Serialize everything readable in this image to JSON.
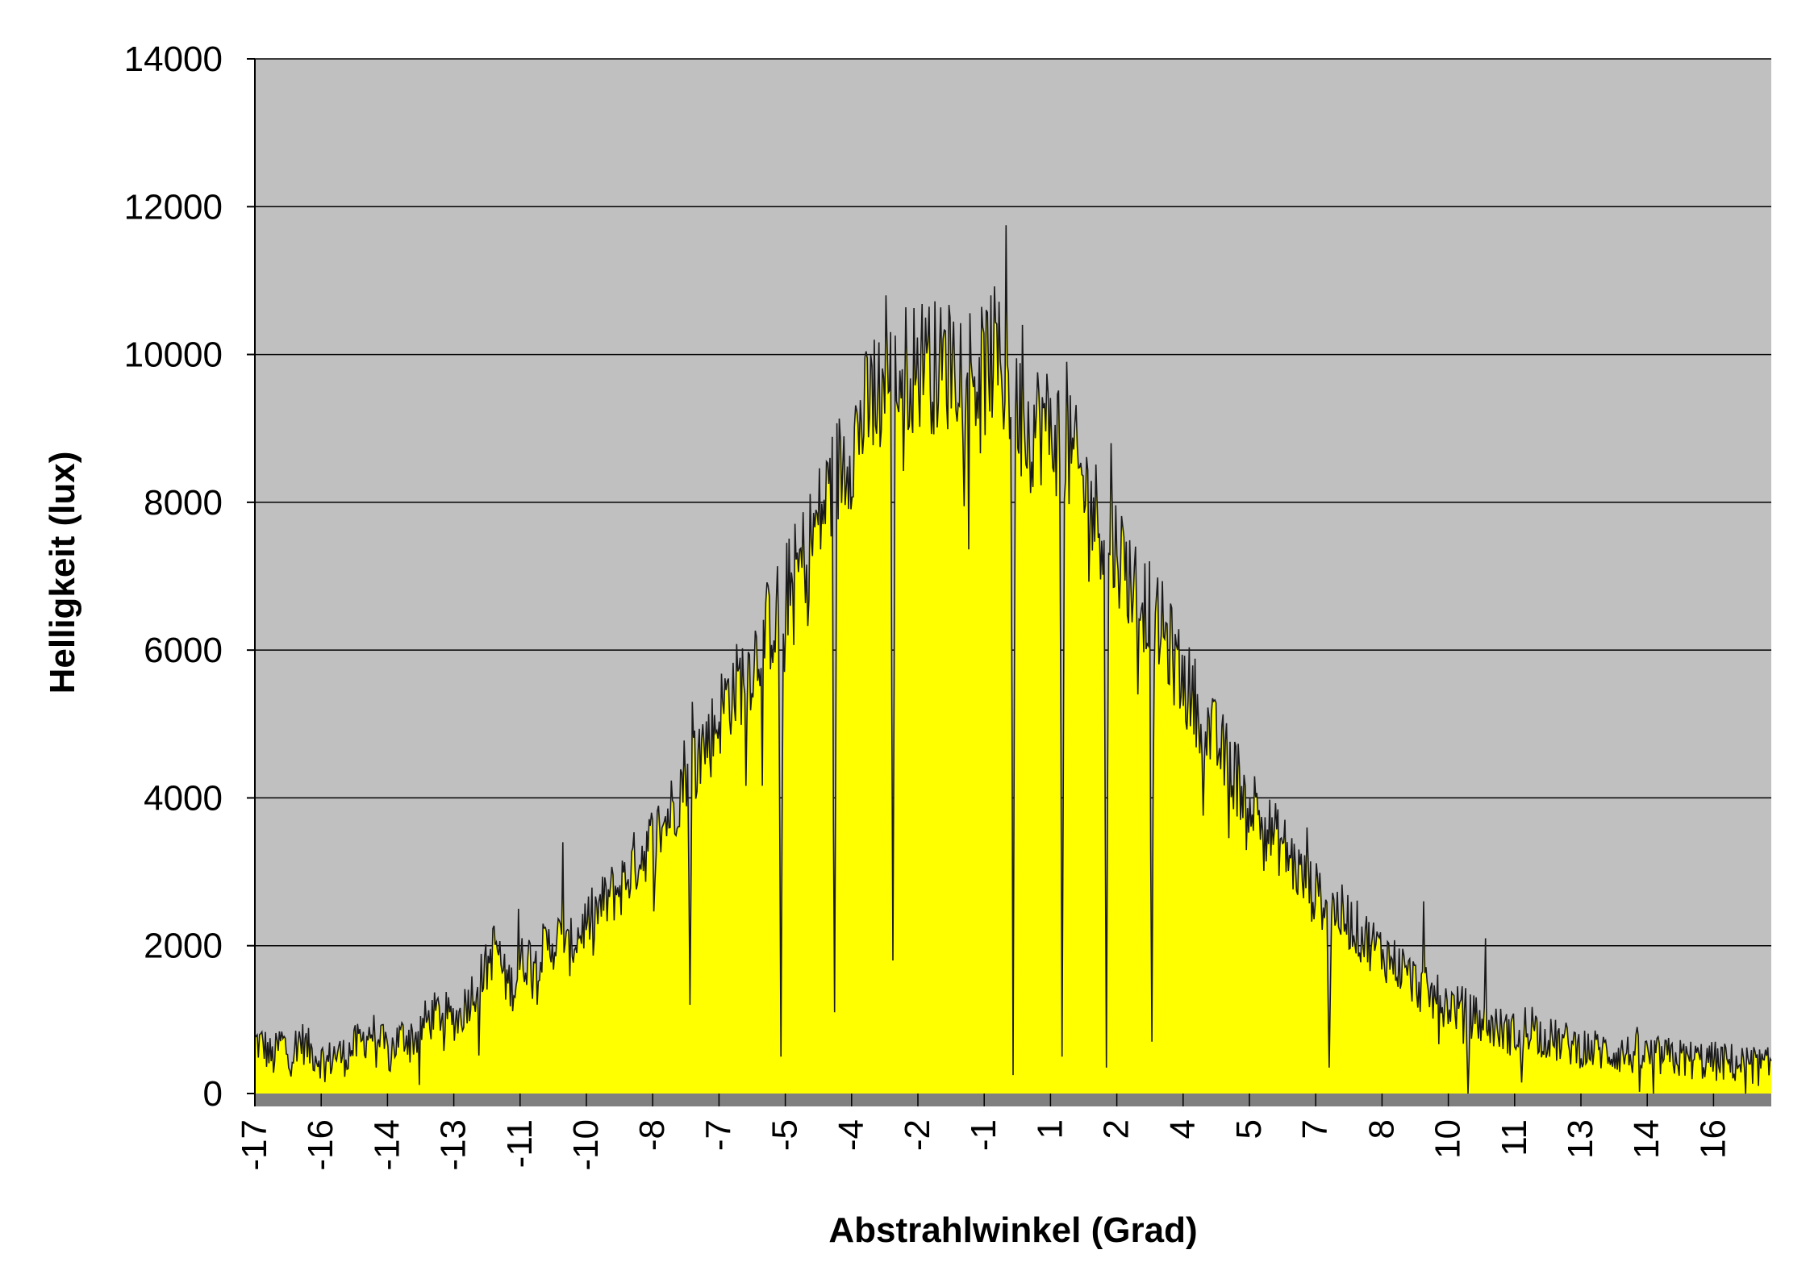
{
  "chart_data": {
    "type": "area",
    "title": "",
    "xlabel": "Abstrahlwinkel (Grad)",
    "ylabel": "Helligkeit (lux)",
    "xlim": [
      -17,
      17
    ],
    "ylim": [
      0,
      14000
    ],
    "y_ticks": [
      0,
      2000,
      4000,
      6000,
      8000,
      10000,
      12000,
      14000
    ],
    "x_tick_labels": [
      "-17",
      "-16",
      "-14",
      "-13",
      "-11",
      "-10",
      "-8",
      "-7",
      "-5",
      "-4",
      "-2",
      "-1",
      "1",
      "2",
      "4",
      "5",
      "7",
      "8",
      "10",
      "11",
      "13",
      "14",
      "16"
    ],
    "grid": true,
    "legend": "none",
    "colors": {
      "plot_background": "#c0c0c0",
      "fill": "#ffff00",
      "line": "#1a1a1a",
      "gridline": "#000000",
      "floor": "#808080"
    },
    "series": [
      {
        "values": [
          [
            -17.0,
            700
          ],
          [
            -16.8,
            650
          ],
          [
            -16.6,
            450
          ],
          [
            -16.4,
            720
          ],
          [
            -16.2,
            500
          ],
          [
            -16.0,
            750
          ],
          [
            -15.8,
            600
          ],
          [
            -15.6,
            520
          ],
          [
            -15.4,
            400
          ],
          [
            -15.2,
            550
          ],
          [
            -15.0,
            500
          ],
          [
            -14.8,
            620
          ],
          [
            -14.6,
            700
          ],
          [
            -14.4,
            850
          ],
          [
            -14.2,
            700
          ],
          [
            -14.0,
            550
          ],
          [
            -13.8,
            720
          ],
          [
            -13.6,
            800
          ],
          [
            -13.4,
            750
          ],
          [
            -13.2,
            950
          ],
          [
            -13.0,
            1050
          ],
          [
            -12.8,
            1100
          ],
          [
            -12.6,
            1000
          ],
          [
            -12.4,
            1050
          ],
          [
            -12.2,
            1300
          ],
          [
            -12.0,
            1500
          ],
          [
            -11.8,
            1700
          ],
          [
            -11.6,
            2050
          ],
          [
            -11.4,
            1550
          ],
          [
            -11.2,
            1450
          ],
          [
            -11.0,
            1800
          ],
          [
            -10.8,
            1850
          ],
          [
            -10.6,
            1900
          ],
          [
            -10.4,
            2000
          ],
          [
            -10.2,
            2100
          ],
          [
            -10.0,
            1900
          ],
          [
            -9.8,
            2100
          ],
          [
            -9.6,
            2300
          ],
          [
            -9.4,
            2400
          ],
          [
            -9.2,
            2550
          ],
          [
            -9.0,
            2700
          ],
          [
            -8.8,
            2800
          ],
          [
            -8.6,
            3000
          ],
          [
            -8.4,
            3200
          ],
          [
            -8.2,
            3350
          ],
          [
            -8.0,
            3500
          ],
          [
            -7.8,
            3700
          ],
          [
            -7.6,
            3900
          ],
          [
            -7.4,
            4300
          ],
          [
            -7.2,
            4600
          ],
          [
            -7.0,
            4700
          ],
          [
            -6.8,
            4800
          ],
          [
            -6.6,
            5100
          ],
          [
            -6.4,
            5400
          ],
          [
            -6.2,
            5500
          ],
          [
            -6.0,
            5700
          ],
          [
            -5.8,
            5900
          ],
          [
            -5.6,
            6200
          ],
          [
            -5.4,
            6400
          ],
          [
            -5.2,
            6600
          ],
          [
            -5.0,
            6900
          ],
          [
            -4.8,
            7100
          ],
          [
            -4.6,
            7400
          ],
          [
            -4.4,
            7700
          ],
          [
            -4.2,
            8000
          ],
          [
            -4.0,
            8300
          ],
          [
            -3.8,
            8600
          ],
          [
            -3.6,
            8800
          ],
          [
            -3.4,
            9100
          ],
          [
            -3.2,
            9300
          ],
          [
            -3.0,
            9500
          ],
          [
            -2.8,
            9600
          ],
          [
            -2.6,
            9700
          ],
          [
            -2.4,
            9800
          ],
          [
            -2.2,
            9850
          ],
          [
            -2.0,
            9900
          ],
          [
            -1.8,
            9850
          ],
          [
            -1.6,
            9800
          ],
          [
            -1.4,
            9900
          ],
          [
            -1.2,
            10000
          ],
          [
            -1.0,
            9900
          ],
          [
            -0.8,
            9700
          ],
          [
            -0.6,
            9800
          ],
          [
            -0.4,
            10000
          ],
          [
            -0.2,
            9700
          ],
          [
            0.0,
            9500
          ],
          [
            0.2,
            9100
          ],
          [
            0.4,
            9000
          ],
          [
            0.6,
            9100
          ],
          [
            0.8,
            9000
          ],
          [
            1.0,
            8900
          ],
          [
            1.2,
            8700
          ],
          [
            1.4,
            8500
          ],
          [
            1.6,
            8200
          ],
          [
            1.8,
            7900
          ],
          [
            2.0,
            7700
          ],
          [
            2.2,
            7500
          ],
          [
            2.4,
            7300
          ],
          [
            2.6,
            7000
          ],
          [
            2.8,
            6800
          ],
          [
            3.0,
            6600
          ],
          [
            3.2,
            6400
          ],
          [
            3.4,
            6200
          ],
          [
            3.6,
            5900
          ],
          [
            3.8,
            5600
          ],
          [
            4.0,
            5400
          ],
          [
            4.2,
            5200
          ],
          [
            4.4,
            4900
          ],
          [
            4.6,
            4700
          ],
          [
            4.8,
            4500
          ],
          [
            5.0,
            4300
          ],
          [
            5.2,
            4100
          ],
          [
            5.4,
            3900
          ],
          [
            5.6,
            3700
          ],
          [
            5.8,
            3500
          ],
          [
            6.0,
            3400
          ],
          [
            6.2,
            3200
          ],
          [
            6.4,
            3000
          ],
          [
            6.6,
            2800
          ],
          [
            6.8,
            2700
          ],
          [
            7.0,
            2600
          ],
          [
            7.2,
            2500
          ],
          [
            7.4,
            2400
          ],
          [
            7.6,
            2300
          ],
          [
            7.8,
            2150
          ],
          [
            8.0,
            2050
          ],
          [
            8.2,
            1950
          ],
          [
            8.4,
            1850
          ],
          [
            8.6,
            1750
          ],
          [
            8.8,
            1650
          ],
          [
            9.0,
            1500
          ],
          [
            9.2,
            1400
          ],
          [
            9.4,
            1300
          ],
          [
            9.6,
            1250
          ],
          [
            9.8,
            1200
          ],
          [
            10.0,
            1150
          ],
          [
            10.2,
            1100
          ],
          [
            10.4,
            1000
          ],
          [
            10.6,
            950
          ],
          [
            10.8,
            900
          ],
          [
            11.0,
            850
          ],
          [
            11.2,
            800
          ],
          [
            11.4,
            850
          ],
          [
            11.6,
            1000
          ],
          [
            11.8,
            800
          ],
          [
            12.0,
            750
          ],
          [
            12.2,
            700
          ],
          [
            12.4,
            680
          ],
          [
            12.6,
            650
          ],
          [
            12.8,
            620
          ],
          [
            13.0,
            600
          ],
          [
            13.2,
            580
          ],
          [
            13.4,
            560
          ],
          [
            13.6,
            540
          ],
          [
            13.8,
            530
          ],
          [
            14.0,
            520
          ],
          [
            14.2,
            510
          ],
          [
            14.4,
            500
          ],
          [
            14.6,
            490
          ],
          [
            14.8,
            480
          ],
          [
            15.0,
            470
          ],
          [
            15.2,
            460
          ],
          [
            15.4,
            450
          ],
          [
            15.6,
            440
          ],
          [
            15.8,
            430
          ],
          [
            16.0,
            420
          ],
          [
            16.2,
            410
          ],
          [
            16.4,
            400
          ],
          [
            16.6,
            380
          ],
          [
            16.8,
            360
          ],
          [
            17.0,
            350
          ]
        ],
        "dips": [
          [
            -7.25,
            1200
          ],
          [
            -5.2,
            500
          ],
          [
            -4.0,
            1100
          ],
          [
            -2.7,
            1800
          ],
          [
            0.0,
            250
          ],
          [
            1.1,
            500
          ],
          [
            2.1,
            350
          ],
          [
            3.1,
            700
          ],
          [
            7.1,
            350
          ],
          [
            10.2,
            0
          ],
          [
            11.4,
            150
          ]
        ],
        "spikes": [
          [
            -11.1,
            2500
          ],
          [
            -10.1,
            3400
          ],
          [
            -7.2,
            5300
          ],
          [
            -5.0,
            6600
          ],
          [
            -4.1,
            8600
          ],
          [
            -3.1,
            10200
          ],
          [
            -2.85,
            10800
          ],
          [
            -1.95,
            10500
          ],
          [
            -1.4,
            10500
          ],
          [
            -0.5,
            10800
          ],
          [
            -0.15,
            11750
          ],
          [
            0.2,
            10400
          ],
          [
            1.2,
            9900
          ],
          [
            2.2,
            8800
          ],
          [
            3.2,
            6500
          ],
          [
            3.7,
            6000
          ],
          [
            4.2,
            5000
          ],
          [
            5.3,
            4000
          ],
          [
            6.6,
            3600
          ],
          [
            9.2,
            2600
          ],
          [
            10.6,
            2100
          ],
          [
            11.4,
            1900
          ],
          [
            14.0,
            900
          ]
        ]
      }
    ]
  }
}
